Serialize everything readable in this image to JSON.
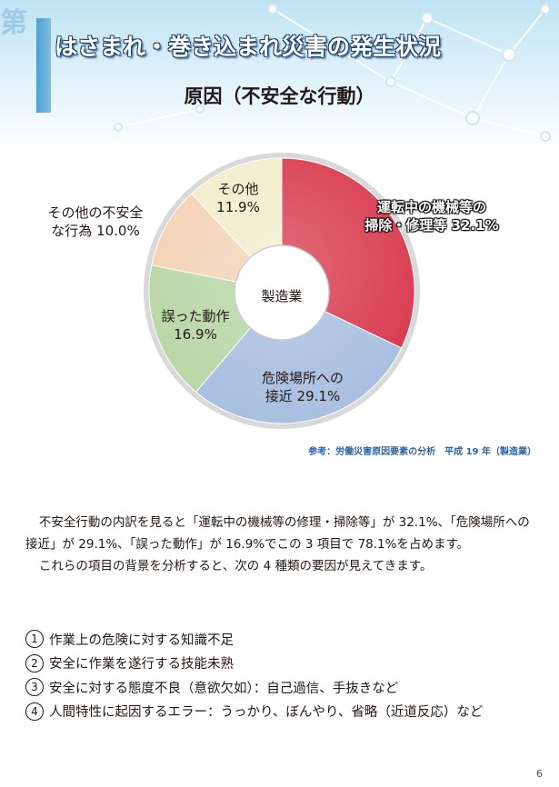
{
  "header": {
    "chapter_char": "第",
    "title": "はさまれ・巻き込まれ災害の発生状況",
    "subtitle": "原因（不安全な行動）"
  },
  "colors": {
    "slice_operation": "#d8394d",
    "slice_approach": "#a9bfe0",
    "slice_mistake": "#b8d6a6",
    "slice_other_unsafe": "#f4d2b5",
    "slice_other": "#f2eccb",
    "source_text": "#2f64a6"
  },
  "chart_data": {
    "type": "pie",
    "title": "",
    "center_label": "製造業",
    "unit": "%",
    "slices": [
      {
        "label_line1": "運転中の機械等の",
        "label_line2": "掃除・修理等 32.1%",
        "name": "運転中の機械等の掃除・修理等",
        "value": 32.1
      },
      {
        "label_line1": "危険場所への",
        "label_line2": "接近 29.1%",
        "name": "危険場所への接近",
        "value": 29.1
      },
      {
        "label_line1": "誤った動作",
        "label_line2": "16.9%",
        "name": "誤った動作",
        "value": 16.9
      },
      {
        "label_line1": "その他の不安全",
        "label_line2": "な行為 10.0%",
        "name": "その他の不安全な行為",
        "value": 10.0
      },
      {
        "label_line1": "その他",
        "label_line2": "11.9%",
        "name": "その他",
        "value": 11.9
      }
    ]
  },
  "source": "参考：労働災害原因要素の分析　平成 19 年（製造業）",
  "body": {
    "para1": "不安全行動の内訳を見ると「運転中の機械等の修理・掃除等」が 32.1%、「危険場所への接近」が 29.1%、「誤った動作」が 16.9%でこの 3 項目で 78.1%を占めます。",
    "para2": "これらの項目の背景を分析すると、次の 4 種類の要因が見えてきます。"
  },
  "factors": [
    {
      "num": "1",
      "text": "作業上の危険に対する知識不足"
    },
    {
      "num": "2",
      "text": "安全に作業を遂行する技能未熟"
    },
    {
      "num": "3",
      "text": "安全に対する態度不良（意欲欠如）：自己過信、手抜きなど"
    },
    {
      "num": "4",
      "text": "人間特性に起因するエラー：うっかり、ぼんやり、省略（近道反応）など"
    }
  ],
  "page_number": "6"
}
